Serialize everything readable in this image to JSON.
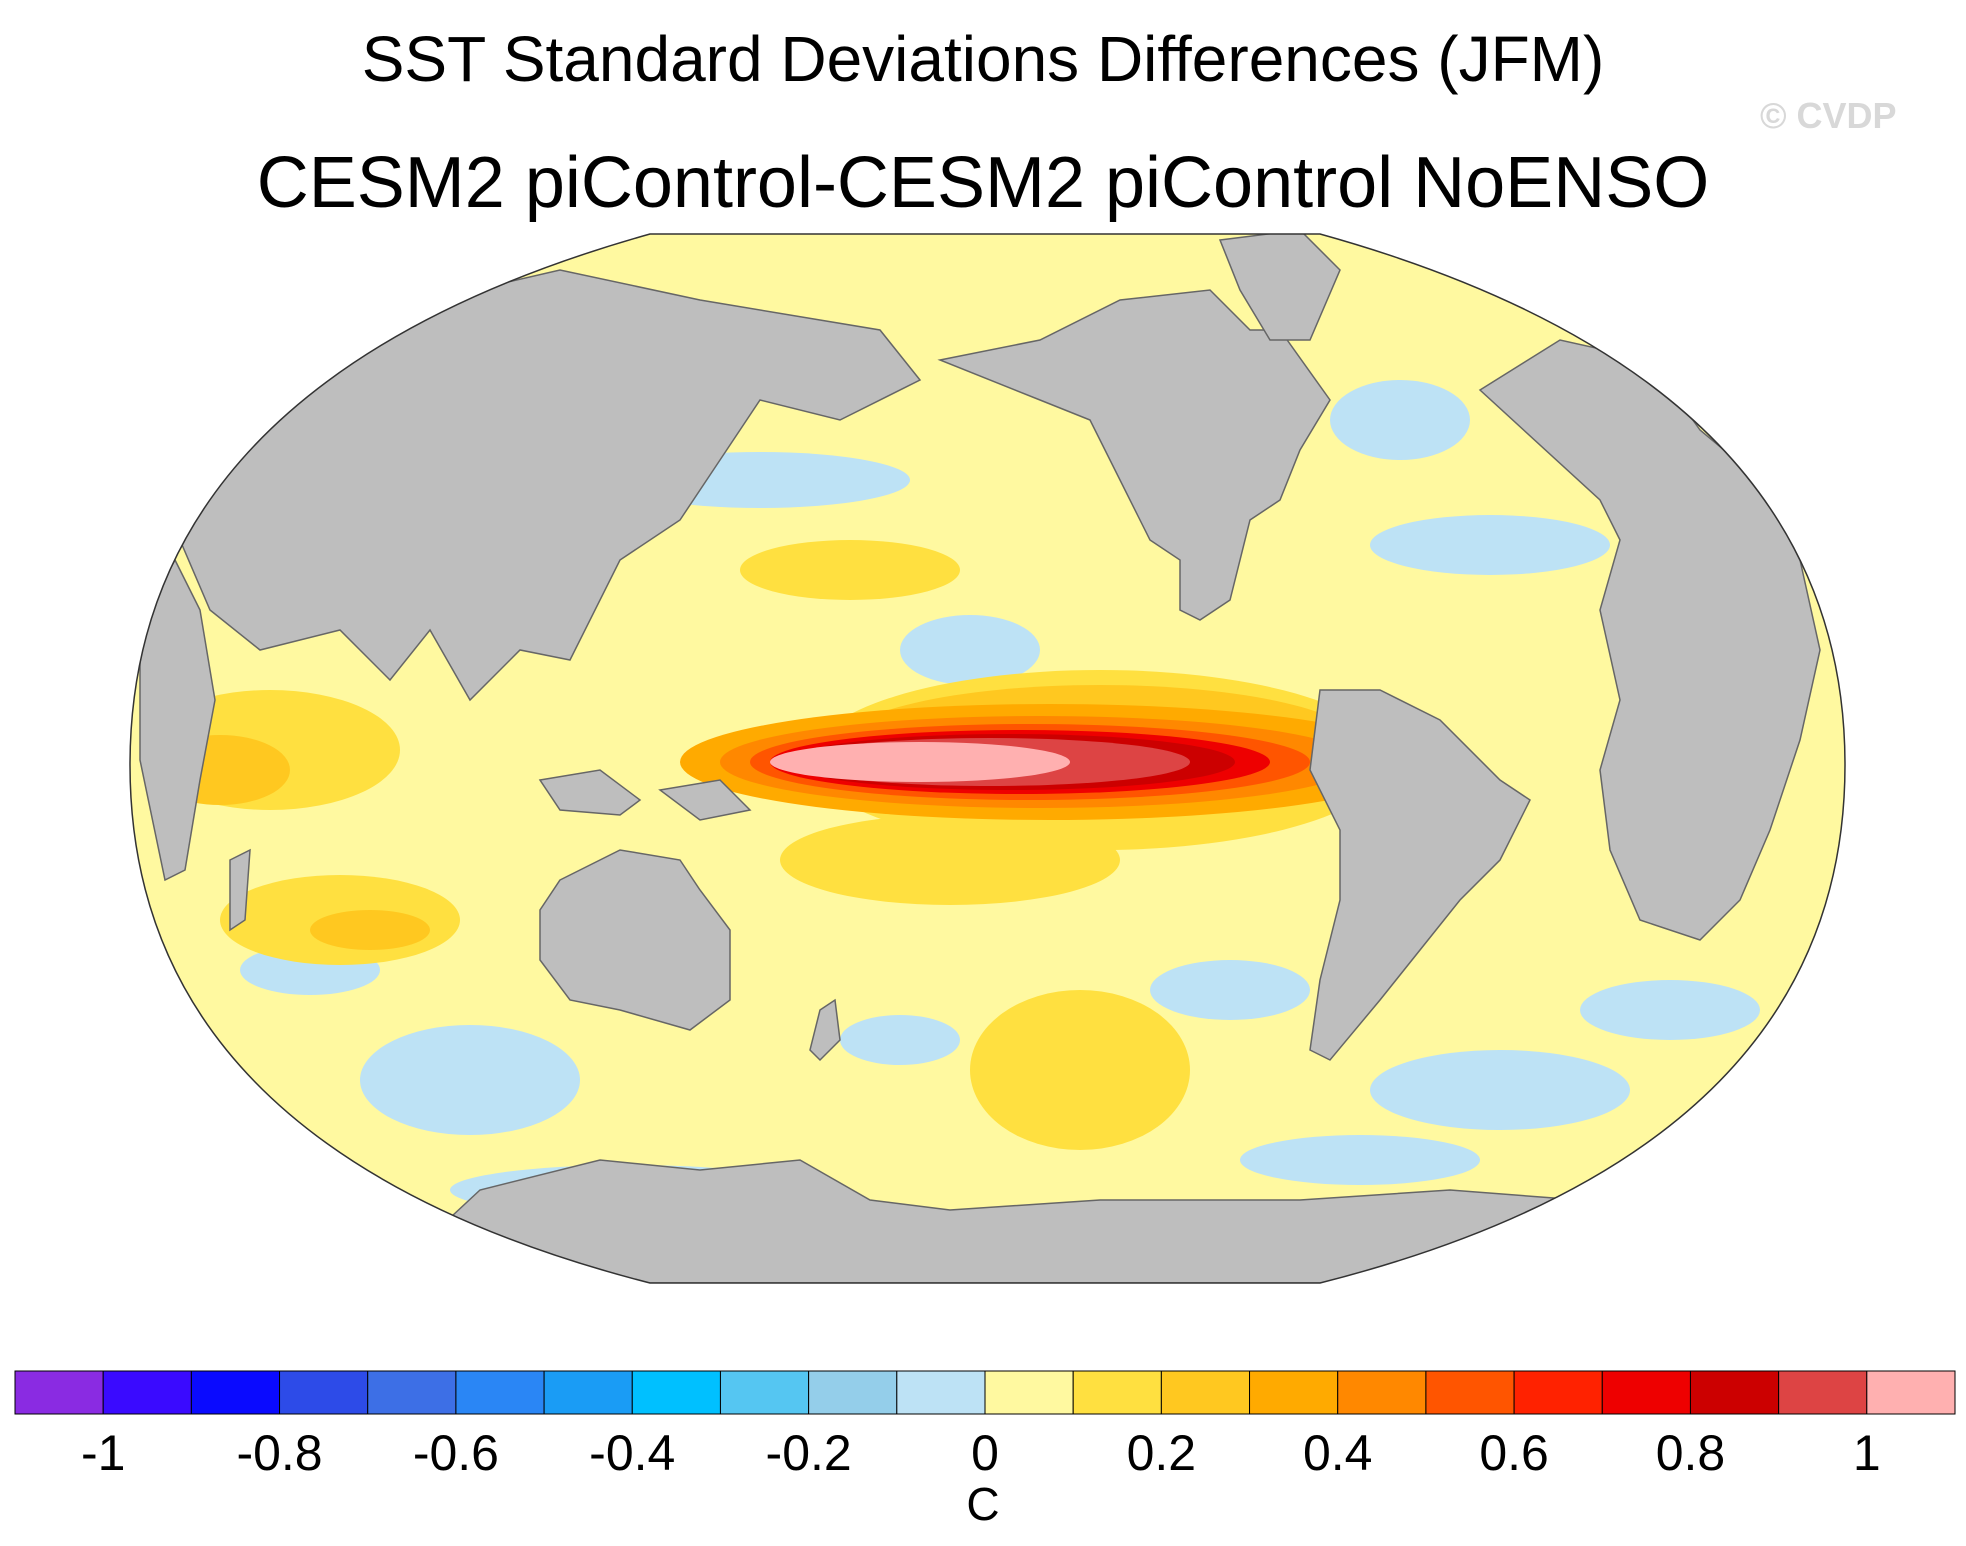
{
  "title": "SST Standard Deviations Differences (JFM)",
  "subtitle": "CESM2 piControl-CESM2 piControl NoENSO",
  "credit": "© CVDP",
  "colorbar": {
    "units": "C",
    "tick_labels": [
      "-1",
      "-0.8",
      "-0.6",
      "-0.4",
      "-0.2",
      "0",
      "0.2",
      "0.4",
      "0.6",
      "0.8",
      "1"
    ],
    "tick_values": [
      -1,
      -0.8,
      -0.6,
      -0.4,
      -0.2,
      0,
      0.2,
      0.4,
      0.6,
      0.8,
      1
    ],
    "min": -1.1,
    "max": 1.1,
    "step": 0.1,
    "colors": [
      "#8a2be2",
      "#3a0aff",
      "#0a0aff",
      "#2d4be8",
      "#3d6fe6",
      "#2a86f5",
      "#1a9cf5",
      "#00c0ff",
      "#55c6f2",
      "#94ceea",
      "#bde2f5",
      "#fff9a0",
      "#ffe040",
      "#ffc820",
      "#ffaa00",
      "#ff8800",
      "#ff5500",
      "#ff2200",
      "#ee0000",
      "#cc0000",
      "#dd4444",
      "#ffb0b0"
    ]
  },
  "map_colors": {
    "land": "#bebebe",
    "level_0_0.1": "#fff9a0",
    "level_0.1_0.2": "#ffe040",
    "level_0.2_0.3": "#ffc820",
    "level_0.3_0.4": "#ffaa00",
    "level_0.4_0.5": "#ff8800",
    "level_0.5_0.6": "#ff5500",
    "level_0.6_0.7": "#ff2200",
    "level_0.7_0.8": "#ee0000",
    "level_0.8_0.9": "#cc0000",
    "level_0.9_1": "#dd4444",
    "level_above_1": "#ffb0b0",
    "level_-0.1_0": "#bde2f5",
    "level_-0.2_-0.1": "#94ceea"
  }
}
